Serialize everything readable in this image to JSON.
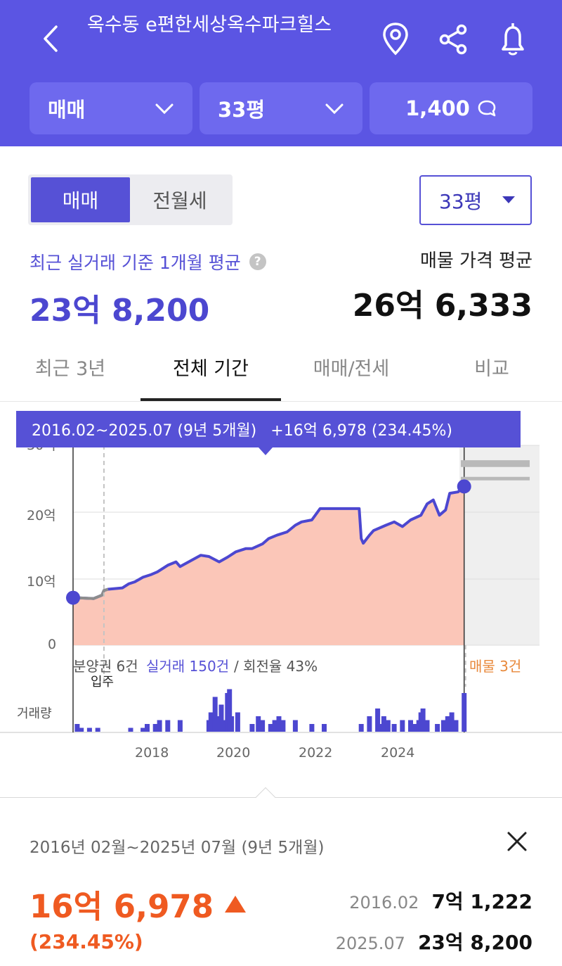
{
  "header": {
    "title": "옥수동 e편한세상옥수파크힐스",
    "filters": {
      "trade": "매매",
      "size": "33평",
      "comments": "1,400"
    }
  },
  "toggle": {
    "sale": "매매",
    "rent": "전월세"
  },
  "size_select": "33평",
  "summary": {
    "left_label": "최근 실거래 기준 1개월 평균",
    "left_value": "23억 8,200",
    "right_label": "매물 가격 평균",
    "right_value": "26억 6,333"
  },
  "tabs": [
    "최근 3년",
    "전체 기간",
    "매매/전세",
    "비교"
  ],
  "tooltip": {
    "period": "2016.02~2025.07 (9년 5개월)",
    "change": "+16억 6,978 (234.45%)"
  },
  "chart_data": {
    "type": "area",
    "yticks": [
      "30억",
      "20억",
      "10억",
      "0"
    ],
    "y_unit": "억",
    "ylim": [
      0,
      30
    ],
    "xticks": [
      "2018",
      "2020",
      "2022",
      "2024"
    ],
    "xlim": [
      2016.0,
      2025.6
    ],
    "series": [
      {
        "x": [
          2016.1,
          2016.5,
          2016.7,
          2016.75,
          2016.85,
          2017.2,
          2017.35,
          2017.5,
          2017.7,
          2017.9,
          2018.05,
          2018.3,
          2018.5,
          2018.6,
          2019.1,
          2019.3,
          2019.55,
          2019.75,
          2019.95,
          2020.2,
          2020.35,
          2020.6,
          2020.75,
          2020.95,
          2021.2,
          2021.4,
          2021.55,
          2021.8,
          2022.0,
          2022.6,
          2022.95,
          2023.0,
          2023.05,
          2023.2,
          2023.3,
          2023.6,
          2023.8,
          2024.0,
          2024.2,
          2024.45,
          2024.6,
          2024.75,
          2024.9,
          2025.05,
          2025.15,
          2025.35,
          2025.5
        ],
        "y": [
          7.12,
          7.0,
          7.5,
          8.2,
          8.4,
          8.6,
          9.2,
          9.5,
          10.2,
          10.6,
          11.0,
          12.0,
          12.5,
          11.8,
          13.5,
          13.3,
          12.5,
          13.2,
          14.0,
          14.5,
          14.5,
          15.2,
          16.0,
          16.5,
          17.0,
          18.0,
          18.5,
          18.8,
          20.5,
          20.5,
          20.5,
          16.0,
          15.3,
          16.5,
          17.2,
          18.0,
          18.5,
          17.8,
          18.8,
          19.5,
          21.2,
          21.8,
          19.5,
          20.3,
          22.8,
          23.0,
          23.82
        ]
      }
    ],
    "listings_marks": [
      27.5,
      27.0,
      25.0
    ],
    "volume": {
      "years": [
        2016.1,
        2016.2,
        2016.4,
        2016.6,
        2017.4,
        2017.7,
        2017.8,
        2018.0,
        2018.1,
        2018.3,
        2018.6,
        2019.3,
        2019.35,
        2019.45,
        2019.5,
        2019.6,
        2019.65,
        2019.75,
        2019.8,
        2019.85,
        2020.0,
        2020.35,
        2020.5,
        2020.6,
        2020.8,
        2020.9,
        2021.0,
        2021.1,
        2021.4,
        2021.8,
        2022.1,
        2023.0,
        2023.2,
        2023.4,
        2023.5,
        2023.55,
        2023.65,
        2023.8,
        2024.0,
        2024.2,
        2024.3,
        2024.4,
        2024.45,
        2024.5,
        2024.6,
        2024.85,
        2025.0,
        2025.1,
        2025.2,
        2025.3,
        2025.5
      ],
      "counts": [
        2,
        1,
        1,
        1,
        1,
        1,
        2,
        2,
        3,
        3,
        3,
        3,
        5,
        9,
        4,
        7,
        3,
        10,
        11,
        4,
        5,
        2,
        4,
        3,
        2,
        3,
        4,
        3,
        3,
        2,
        2,
        2,
        4,
        6,
        2,
        4,
        3,
        2,
        3,
        3,
        2,
        3,
        5,
        6,
        3,
        2,
        3,
        4,
        5,
        3,
        10
      ]
    },
    "dashed_marker_year": 2016.75
  },
  "chart_notes": {
    "presale": "분양권 6건",
    "actual": "실거래 150건",
    "turnover": "/ 회전율 43%",
    "move_in": "입주",
    "listings": "매물 3건",
    "volume_label": "거래량"
  },
  "detail": {
    "period": "2016년 02월~2025년 07월 (9년 5개월)",
    "change": "16억 6,978",
    "change_pct": "(234.45%)",
    "start_date": "2016.02",
    "start_price": "7억 1,222",
    "end_date": "2025.07",
    "end_price": "23억 8,200"
  },
  "colors": {
    "brand": "#5b55e3",
    "accent": "#4c47d0",
    "rise": "#ef5a21",
    "area": "#fbc6b8"
  }
}
